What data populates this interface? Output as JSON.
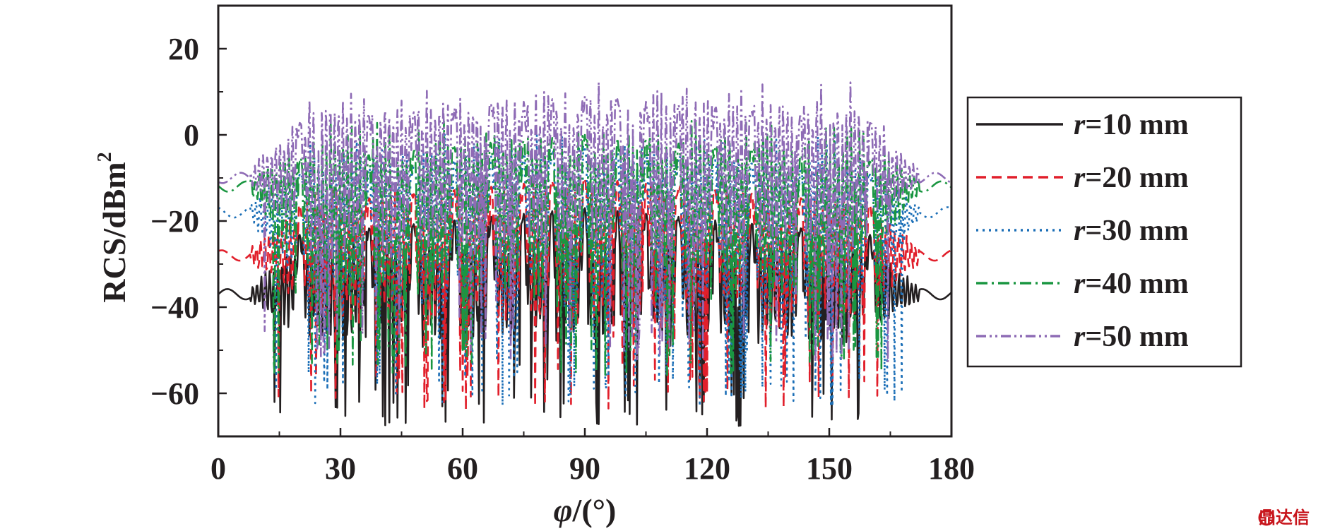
{
  "chart_data": {
    "type": "line",
    "title": "",
    "xlabel_symbol": "φ",
    "xlabel_unit": "/(°)",
    "ylabel_main": "RCS/dBm",
    "ylabel_sup": "2",
    "xlim": [
      0,
      180
    ],
    "ylim": [
      -70,
      30
    ],
    "xticks": [
      0,
      30,
      60,
      90,
      120,
      150,
      180
    ],
    "yticks": [
      20,
      0,
      -20,
      -40,
      -60
    ],
    "ytick_labels": [
      "20",
      "0",
      "−20",
      "−40",
      "−60"
    ],
    "grid": false,
    "legend_position": "right",
    "series": [
      {
        "name_var": "r",
        "name_rest": "=10 mm",
        "color": "#231f20",
        "dash": "solid",
        "baseline": -37,
        "peak": -17,
        "trough": -60
      },
      {
        "name_var": "r",
        "name_rest": "=20 mm",
        "color": "#e11f2b",
        "dash": "dashed",
        "baseline": -28,
        "peak": -10,
        "trough": -56
      },
      {
        "name_var": "r",
        "name_rest": "=30 mm",
        "color": "#1c6fb7",
        "dash": "dotted",
        "baseline": -18,
        "peak": -3,
        "trough": -55
      },
      {
        "name_var": "r",
        "name_rest": "=40 mm",
        "color": "#1a9641",
        "dash": "dash-dot",
        "baseline": -12,
        "peak": 0,
        "trough": -48
      },
      {
        "name_var": "r",
        "name_rest": "=50 mm",
        "color": "#8e6bb5",
        "dash": "dash-dot-dot",
        "baseline": -10,
        "peak": 9,
        "trough": -45
      }
    ]
  },
  "watermark": "鼎达信"
}
